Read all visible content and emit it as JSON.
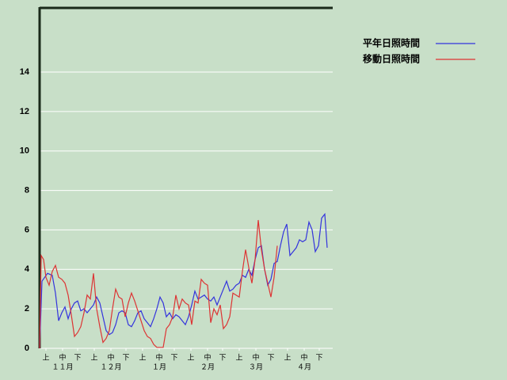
{
  "chart_data": {
    "type": "line",
    "xlim": [
      0,
      185
    ],
    "ylim": [
      0,
      17.25
    ],
    "yticks": [
      0,
      2,
      4,
      6,
      8,
      10,
      12,
      14
    ],
    "grid": true,
    "xticks": [
      {
        "value": 4,
        "label": "上"
      },
      {
        "value": 14.5,
        "label": "中"
      },
      {
        "value": 24,
        "label": "下"
      },
      {
        "value": 34.5,
        "label": "上"
      },
      {
        "value": 45,
        "label": "中"
      },
      {
        "value": 54.5,
        "label": "下"
      },
      {
        "value": 65,
        "label": "上"
      },
      {
        "value": 75.5,
        "label": "中"
      },
      {
        "value": 85,
        "label": "下"
      },
      {
        "value": 95.5,
        "label": "上"
      },
      {
        "value": 106,
        "label": "中"
      },
      {
        "value": 115.5,
        "label": "下"
      },
      {
        "value": 126,
        "label": "上"
      },
      {
        "value": 136.5,
        "label": "中"
      },
      {
        "value": 146,
        "label": "下"
      },
      {
        "value": 156.5,
        "label": "上"
      },
      {
        "value": 167,
        "label": "中"
      },
      {
        "value": 176.5,
        "label": "下"
      }
    ],
    "month_labels": [
      {
        "value": 14.5,
        "label": "１１月"
      },
      {
        "value": 45,
        "label": "１２月"
      },
      {
        "value": 75.5,
        "label": "１月"
      },
      {
        "value": 106,
        "label": "２月"
      },
      {
        "value": 136.5,
        "label": "３月"
      },
      {
        "value": 167,
        "label": "４月"
      }
    ],
    "legend": "right",
    "series": [
      {
        "name": "平年日照時間",
        "color": "#3333dd",
        "x": [
          0,
          1.5,
          5,
          8,
          10,
          12,
          14,
          16,
          18,
          20,
          22,
          24,
          26,
          28,
          30,
          32,
          34,
          36,
          38,
          40,
          42,
          44,
          46,
          48,
          50,
          52,
          54,
          56,
          58,
          60,
          62,
          64,
          66,
          68,
          70,
          72,
          74,
          76,
          78,
          80,
          82,
          84,
          86,
          88,
          90,
          92,
          94,
          96,
          98,
          100,
          102,
          104,
          106,
          108,
          110,
          112,
          114,
          116,
          118,
          120,
          122,
          124,
          126,
          128,
          130,
          132,
          134,
          136,
          138,
          140,
          142,
          144,
          146,
          148,
          150,
          152,
          154,
          156,
          158,
          160,
          162,
          164,
          166,
          168,
          170,
          172,
          174,
          176,
          178,
          180,
          181.5
        ],
        "values": [
          0,
          3.4,
          3.8,
          3.7,
          2.8,
          1.4,
          1.8,
          2.1,
          1.5,
          2.0,
          2.3,
          2.4,
          1.9,
          2.0,
          1.8,
          2.0,
          2.2,
          2.6,
          2.3,
          1.6,
          0.9,
          0.7,
          0.8,
          1.2,
          1.8,
          1.9,
          1.8,
          1.2,
          1.1,
          1.4,
          1.8,
          1.9,
          1.5,
          1.3,
          1.1,
          1.5,
          2.0,
          2.6,
          2.3,
          1.6,
          1.8,
          1.5,
          1.7,
          1.6,
          1.4,
          1.2,
          1.6,
          2.2,
          2.9,
          2.5,
          2.6,
          2.7,
          2.5,
          2.4,
          2.6,
          2.2,
          2.6,
          3.0,
          3.4,
          2.9,
          3.0,
          3.2,
          3.3,
          3.7,
          3.6,
          4.0,
          3.7,
          4.5,
          5.1,
          5.2,
          4.0,
          3.2,
          3.5,
          4.3,
          4.4,
          5.2,
          5.9,
          6.3,
          4.7,
          4.9,
          5.1,
          5.5,
          5.4,
          5.5,
          6.4,
          6.0,
          4.9,
          5.2,
          6.6,
          6.8,
          5.1
        ]
      },
      {
        "name": "移動日照時間",
        "color": "#dd3333",
        "x": [
          0,
          1,
          2.5,
          4,
          6,
          8,
          10,
          12,
          14,
          16,
          18,
          20,
          22,
          24,
          26,
          28,
          30,
          32,
          34,
          36,
          38,
          40,
          42,
          44,
          46,
          48,
          50,
          52,
          54,
          56,
          58,
          60,
          62,
          64,
          66,
          68,
          70,
          72,
          74,
          76,
          78,
          80,
          82,
          84,
          86,
          88,
          90,
          92,
          94,
          96,
          98,
          100,
          102,
          104,
          106,
          108,
          110,
          112,
          114,
          116,
          118,
          120,
          122,
          124,
          126,
          128,
          130,
          132,
          134,
          136,
          138,
          140,
          142,
          144,
          146,
          148,
          150
        ],
        "values": [
          0,
          4.7,
          4.5,
          3.6,
          3.2,
          3.9,
          4.2,
          3.6,
          3.5,
          3.3,
          2.7,
          1.7,
          0.6,
          0.8,
          1.1,
          1.8,
          2.7,
          2.5,
          3.8,
          2.0,
          1.1,
          0.3,
          0.5,
          0.9,
          2.0,
          3.0,
          2.6,
          2.5,
          1.6,
          2.3,
          2.8,
          2.4,
          1.9,
          1.4,
          0.9,
          0.6,
          0.5,
          0.2,
          0.05,
          0.05,
          0.05,
          1.0,
          1.2,
          1.6,
          2.7,
          2.0,
          2.5,
          2.3,
          2.2,
          1.2,
          2.4,
          2.3,
          3.5,
          3.3,
          3.2,
          1.3,
          2.0,
          1.7,
          2.2,
          1.0,
          1.2,
          1.6,
          2.8,
          2.7,
          2.6,
          3.9,
          5.0,
          4.1,
          3.3,
          4.5,
          6.5,
          5.0,
          4.0,
          3.3,
          2.6,
          3.6,
          5.2
        ]
      }
    ]
  }
}
